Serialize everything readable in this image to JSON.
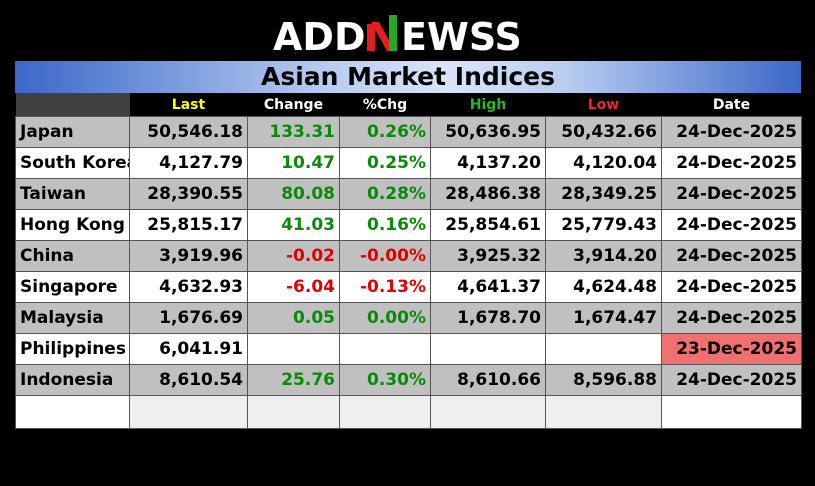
{
  "brand": {
    "logo_text": "ADDNEWSS"
  },
  "title": "Asian Market Indices",
  "columns": {
    "name": "",
    "last": "Last",
    "change": "Change",
    "pct": "%Chg",
    "high": "High",
    "low": "Low",
    "date": "Date"
  },
  "colors": {
    "last_header": "#ffff00",
    "high_header": "#22bb22",
    "low_header": "#ff2020",
    "positive": "#0a8a0a",
    "negative": "#e00000",
    "stale_date_bg": "#f07070"
  },
  "rows": [
    {
      "name": "Japan",
      "last": "50,546.18",
      "change": "133.31",
      "pct": "0.26%",
      "high": "50,636.95",
      "low": "50,432.66",
      "date": "24-Dec-2025"
    },
    {
      "name": "South Korea",
      "last": "4,127.79",
      "change": "10.47",
      "pct": "0.25%",
      "high": "4,137.20",
      "low": "4,120.04",
      "date": "24-Dec-2025"
    },
    {
      "name": "Taiwan",
      "last": "28,390.55",
      "change": "80.08",
      "pct": "0.28%",
      "high": "28,486.38",
      "low": "28,349.25",
      "date": "24-Dec-2025"
    },
    {
      "name": "Hong Kong",
      "last": "25,815.17",
      "change": "41.03",
      "pct": "0.16%",
      "high": "25,854.61",
      "low": "25,779.43",
      "date": "24-Dec-2025"
    },
    {
      "name": "China",
      "last": "3,919.96",
      "change": "-0.02",
      "pct": "-0.00%",
      "high": "3,925.32",
      "low": "3,914.20",
      "date": "24-Dec-2025"
    },
    {
      "name": "Singapore",
      "last": "4,632.93",
      "change": "-6.04",
      "pct": "-0.13%",
      "high": "4,641.37",
      "low": "4,624.48",
      "date": "24-Dec-2025"
    },
    {
      "name": "Malaysia",
      "last": "1,676.69",
      "change": "0.05",
      "pct": "0.00%",
      "high": "1,678.70",
      "low": "1,674.47",
      "date": "24-Dec-2025"
    },
    {
      "name": "Philippines",
      "last": "6,041.91",
      "change": "",
      "pct": "",
      "high": "",
      "low": "",
      "date": "23-Dec-2025"
    },
    {
      "name": "Indonesia",
      "last": "8,610.54",
      "change": "25.76",
      "pct": "0.30%",
      "high": "8,610.66",
      "low": "8,596.88",
      "date": "24-Dec-2025"
    }
  ]
}
